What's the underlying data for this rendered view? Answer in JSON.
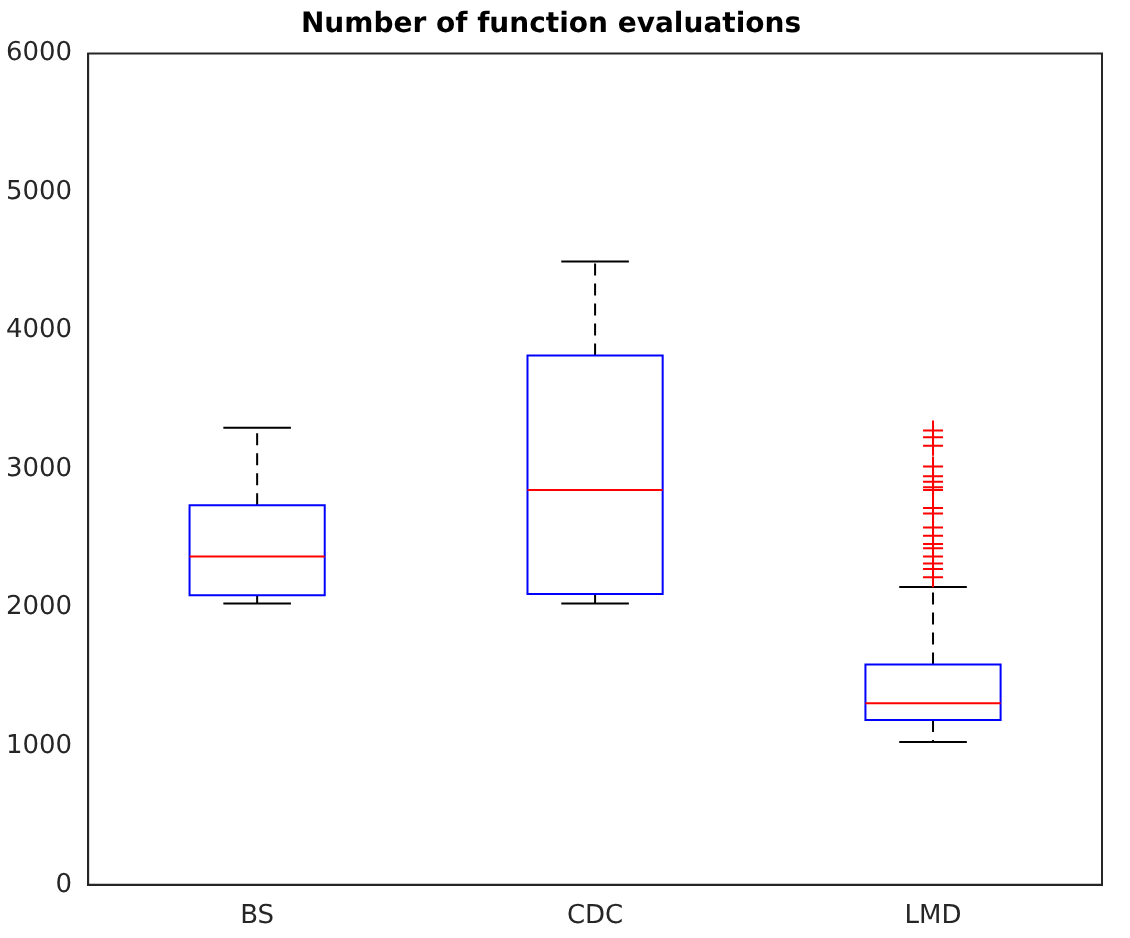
{
  "chart_data": {
    "type": "box",
    "title": "Number of function evaluations",
    "categories": [
      "BS",
      "CDC",
      "LMD"
    ],
    "ylim": [
      0,
      6000
    ],
    "yticks": [
      0,
      1000,
      2000,
      3000,
      4000,
      5000,
      6000
    ],
    "grid": false,
    "legend": false,
    "series": [
      {
        "type": "box",
        "color": "#0000ff",
        "boxes": [
          {
            "low": 2030,
            "q1": 2090,
            "median": 2370,
            "q3": 2740,
            "high": 3300
          },
          {
            "low": 2030,
            "q1": 2100,
            "median": 2850,
            "q3": 3820,
            "high": 4500
          },
          {
            "low": 1030,
            "q1": 1190,
            "median": 1310,
            "q3": 1590,
            "high": 2150,
            "outliers": [
              3280,
              3230,
              3170,
              3020,
              2950,
              2910,
              2870,
              2850,
              2720,
              2680,
              2580,
              2520,
              2460,
              2430,
              2370,
              2320,
              2280,
              2220
            ]
          }
        ]
      }
    ]
  }
}
